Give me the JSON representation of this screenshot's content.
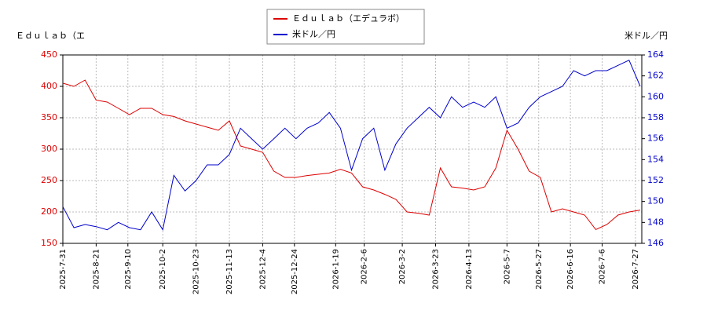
{
  "chart_data": {
    "type": "line",
    "y_label": "Ｅｄｕｌａｂ（エ",
    "y2_label": "米ドル／円",
    "x": [
      "2025-7-31",
      "2025-8-7",
      "2025-8-14",
      "2025-8-21",
      "2025-8-28",
      "2025-9-4",
      "2025-9-11",
      "2025-9-18",
      "2025-9-25",
      "2025-10-2",
      "2025-10-9",
      "2025-10-16",
      "2025-10-23",
      "2025-10-30",
      "2025-11-6",
      "2025-11-13",
      "2025-11-20",
      "2025-11-27",
      "2025-12-4",
      "2025-12-11",
      "2025-12-18",
      "2025-12-25",
      "2026-1-1",
      "2026-1-8",
      "2026-1-15",
      "2026-1-22",
      "2026-1-29",
      "2026-2-5",
      "2026-2-12",
      "2026-2-19",
      "2026-2-26",
      "2026-3-5",
      "2026-3-12",
      "2026-3-19",
      "2026-3-26",
      "2026-4-2",
      "2026-4-9",
      "2026-4-16",
      "2026-4-23",
      "2026-4-30",
      "2026-5-7",
      "2026-5-14",
      "2026-5-21",
      "2026-5-28",
      "2026-6-4",
      "2026-6-11",
      "2026-6-18",
      "2026-6-25",
      "2026-7-2",
      "2026-7-9",
      "2026-7-16",
      "2026-7-23",
      "2026-7-30"
    ],
    "xlim": [
      "2025-7-31",
      "2026-7-31"
    ],
    "xticks": [
      "2025-7-31",
      "2025-8-21",
      "2025-9-10",
      "2025-10-2",
      "2025-10-23",
      "2025-11-13",
      "2025-12-4",
      "2025-12-24",
      "2026-1-19",
      "2026-2-6",
      "2026-3-2",
      "2026-3-23",
      "2026-4-13",
      "2026-5-7",
      "2026-5-27",
      "2026-6-16",
      "2026-7-6",
      "2026-7-27"
    ],
    "ylim": [
      150,
      450
    ],
    "yticks": [
      150,
      200,
      250,
      300,
      350,
      400,
      450
    ],
    "y2lim": [
      146,
      164
    ],
    "y2ticks": [
      146,
      148,
      150,
      152,
      154,
      156,
      158,
      160,
      162,
      164
    ],
    "grid": true,
    "series": [
      {
        "name": "Ｅｄｕｌａｂ（エデュラボ）",
        "color": "#dd0000",
        "values": [
          405,
          400,
          410,
          378,
          375,
          365,
          355,
          365,
          365,
          355,
          352,
          345,
          340,
          335,
          330,
          345,
          305,
          300,
          295,
          265,
          255,
          255,
          258,
          260,
          262,
          268,
          262,
          240,
          235,
          228,
          220,
          200,
          198,
          195,
          270,
          240,
          238,
          235,
          240,
          270,
          330,
          300,
          265,
          255,
          200,
          205,
          200,
          195,
          172,
          180,
          195,
          200,
          203
        ]
      },
      {
        "name": "米ドル／円",
        "color": "#0000cc",
        "axis": "y2",
        "values": [
          149.5,
          147.5,
          147.8,
          147.6,
          147.3,
          148.0,
          147.5,
          147.3,
          149.0,
          147.3,
          152.5,
          151.0,
          152.0,
          153.5,
          153.5,
          154.5,
          157.0,
          156.0,
          155.0,
          156.0,
          157.0,
          156.0,
          157.0,
          157.5,
          158.5,
          157.0,
          153.0,
          156.0,
          157.0,
          153.0,
          155.5,
          157.0,
          158.0,
          159.0,
          158.0,
          160.0,
          159.0,
          159.5,
          159.0,
          160.0,
          157.0,
          157.5,
          159.0,
          160.0,
          160.5,
          161.0,
          162.5,
          162.0,
          162.5,
          162.5,
          163.0,
          163.5,
          161.0
        ]
      }
    ]
  }
}
